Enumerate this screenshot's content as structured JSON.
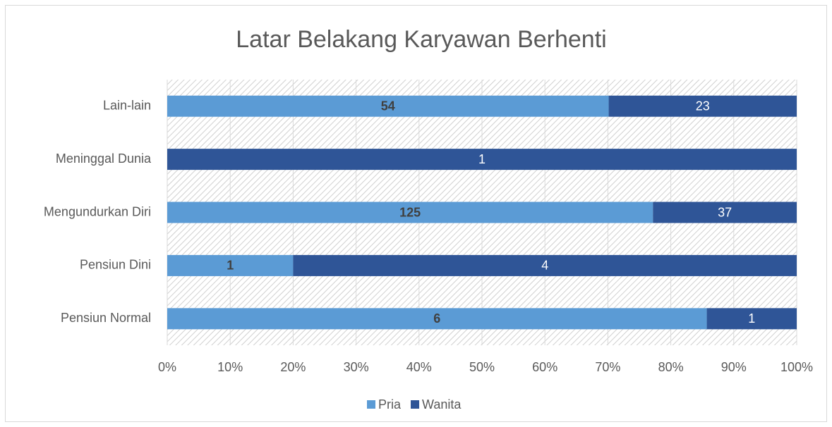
{
  "chart_data": {
    "type": "bar",
    "orientation": "horizontal",
    "stacked": "percent",
    "title": "Latar Belakang Karyawan Berhenti",
    "categories": [
      "Lain-lain",
      "Meninggal Dunia",
      "Mengundurkan Diri",
      "Pensiun Dini",
      "Pensiun Normal"
    ],
    "series": [
      {
        "name": "Pria",
        "color": "#5b9bd5",
        "values": [
          54,
          0,
          125,
          1,
          6
        ]
      },
      {
        "name": "Wanita",
        "color": "#2f5597",
        "values": [
          23,
          1,
          37,
          4,
          1
        ]
      }
    ],
    "xlim": [
      0,
      100
    ],
    "xticks": [
      {
        "value": 0,
        "label": "0%"
      },
      {
        "value": 10,
        "label": "10%"
      },
      {
        "value": 20,
        "label": "20%"
      },
      {
        "value": 30,
        "label": "30%"
      },
      {
        "value": 40,
        "label": "40%"
      },
      {
        "value": 50,
        "label": "50%"
      },
      {
        "value": 60,
        "label": "60%"
      },
      {
        "value": 70,
        "label": "70%"
      },
      {
        "value": 80,
        "label": "80%"
      },
      {
        "value": 90,
        "label": "90%"
      },
      {
        "value": 100,
        "label": "100%"
      }
    ],
    "grid": true,
    "legend": "bottom"
  }
}
